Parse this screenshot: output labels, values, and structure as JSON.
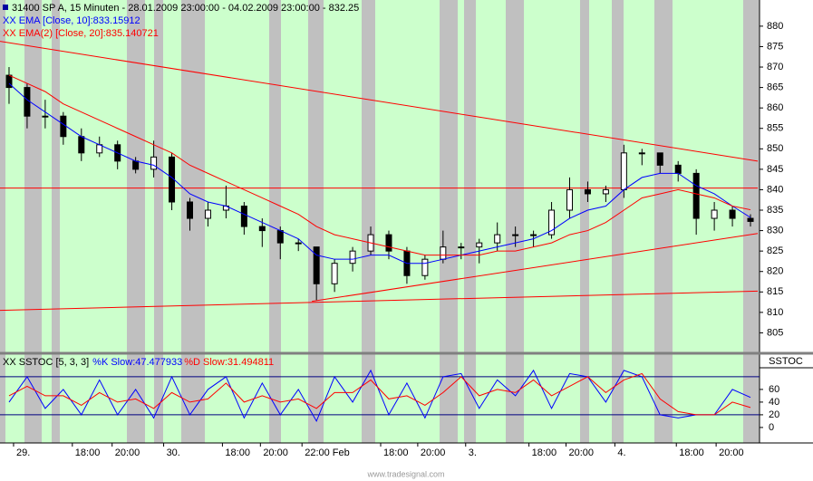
{
  "chart_data": [
    {
      "type": "candlestick",
      "title": "31400  SP A, 15 Minuten - 28.01.2009 23:00:00 - 04.02.2009 23:00:00 - 832.25",
      "candles": [
        [
          868,
          870,
          861,
          865
        ],
        [
          865,
          866,
          855,
          858
        ],
        [
          858,
          862,
          855,
          858
        ],
        [
          858,
          859,
          851,
          853
        ],
        [
          853,
          855,
          847,
          849
        ],
        [
          849,
          853,
          848,
          851
        ],
        [
          851,
          852,
          845,
          847
        ],
        [
          847,
          848,
          844,
          845
        ],
        [
          845,
          852,
          843,
          848
        ],
        [
          848,
          849,
          835,
          837
        ],
        [
          837,
          838,
          830,
          833
        ],
        [
          833,
          837,
          831,
          835
        ],
        [
          835,
          841,
          833,
          836
        ],
        [
          836,
          837,
          829,
          831
        ],
        [
          831,
          833,
          826,
          830
        ],
        [
          830,
          831,
          823,
          827
        ],
        [
          827,
          828,
          825,
          827
        ],
        [
          826,
          826,
          813,
          817
        ],
        [
          817,
          823,
          815,
          822
        ],
        [
          822,
          826,
          820,
          825
        ],
        [
          825,
          831,
          824,
          829
        ],
        [
          829,
          830,
          823,
          825
        ],
        [
          825,
          826,
          817,
          819
        ],
        [
          819,
          824,
          818,
          823
        ],
        [
          823,
          830,
          822,
          826
        ],
        [
          826,
          827,
          823,
          826
        ],
        [
          826,
          828,
          822,
          827
        ],
        [
          827,
          832,
          825,
          829
        ],
        [
          829,
          831,
          826,
          829
        ],
        [
          829,
          830,
          826,
          829
        ],
        [
          829,
          837,
          828,
          835
        ],
        [
          835,
          843,
          833,
          840
        ],
        [
          840,
          842,
          837,
          839
        ],
        [
          839,
          841,
          837,
          840
        ],
        [
          840,
          851,
          838,
          849
        ],
        [
          849,
          850,
          846,
          849
        ],
        [
          849,
          849,
          844,
          846
        ],
        [
          846,
          847,
          842,
          844
        ],
        [
          844,
          845,
          829,
          833
        ],
        [
          833,
          837,
          830,
          835
        ],
        [
          835,
          836,
          831,
          833
        ],
        [
          833,
          834,
          831,
          832.25
        ]
      ],
      "series": [
        {
          "name": "XX EMA [Close, 10]:833.15912",
          "color": "#0000ff",
          "values": [
            866,
            862,
            859,
            856,
            853,
            851,
            849,
            847,
            846,
            843,
            839,
            837,
            836,
            834,
            832,
            830,
            828,
            824,
            823,
            823,
            824,
            824,
            822,
            822,
            823,
            824,
            825,
            826,
            827,
            828,
            830,
            833,
            835,
            836,
            840,
            843,
            844,
            844,
            841,
            839,
            836,
            833.2
          ]
        },
        {
          "name": "XX EMA(2) [Close, 20]:835.140721",
          "color": "#ff0000",
          "values": [
            868,
            866,
            864,
            861,
            859,
            857,
            855,
            853,
            851,
            849,
            846,
            844,
            842,
            840,
            838,
            836,
            834,
            831,
            829,
            828,
            827,
            826,
            825,
            824,
            824,
            824,
            824,
            825,
            825,
            826,
            827,
            829,
            830,
            832,
            835,
            838,
            839,
            840,
            839,
            838,
            836,
            835.1
          ]
        }
      ],
      "trendlines": [
        [
          [
            -0.5,
            876.3
          ],
          [
            41.4,
            847
          ]
        ],
        [
          [
            -0.5,
            840.4
          ],
          [
            41.4,
            840.4
          ]
        ],
        [
          [
            16.75,
            812.7
          ],
          [
            41.4,
            829.3
          ]
        ],
        [
          [
            -0.5,
            810.5
          ],
          [
            41.4,
            815.2
          ]
        ]
      ],
      "xlim": [
        -0.5,
        41.5
      ],
      "ylim": [
        800,
        886.4
      ],
      "yticks": [
        805,
        810,
        815,
        820,
        825,
        830,
        835,
        840,
        845,
        850,
        855,
        860,
        865,
        870,
        875,
        880
      ],
      "xticks": [
        {
          "value": 0.25,
          "label": "29."
        },
        {
          "value": 3.5,
          "label": "18:00"
        },
        {
          "value": 5.7,
          "label": "20:00"
        },
        {
          "value": 8.55,
          "label": "30."
        },
        {
          "value": 11.8,
          "label": "18:00"
        },
        {
          "value": 13.9,
          "label": "20:00"
        },
        {
          "value": 16.2,
          "label": "22:00 Feb"
        },
        {
          "value": 20.55,
          "label": "18:00"
        },
        {
          "value": 22.6,
          "label": "20:00"
        },
        {
          "value": 25.25,
          "label": "3."
        },
        {
          "value": 28.75,
          "label": "18:00"
        },
        {
          "value": 30.8,
          "label": "20:00"
        },
        {
          "value": 33.5,
          "label": "4."
        },
        {
          "value": 36.9,
          "label": "18:00"
        },
        {
          "value": 39.1,
          "label": "20:00"
        }
      ],
      "footer": "www.tradesignal.com"
    },
    {
      "type": "line",
      "title": "XX SSTOC [5, 3, 3]",
      "panel_label": "SSTOC",
      "series": [
        {
          "name": "%K Slow:47.477933",
          "color": "#0000ff",
          "values": [
            40,
            80,
            30,
            60,
            20,
            75,
            20,
            60,
            15,
            80,
            20,
            60,
            80,
            15,
            70,
            20,
            60,
            10,
            80,
            40,
            90,
            20,
            70,
            15,
            80,
            85,
            30,
            75,
            50,
            90,
            30,
            85,
            80,
            40,
            90,
            80,
            20,
            15,
            20,
            20,
            60,
            47.5
          ]
        },
        {
          "name": "%D Slow:31.494811",
          "color": "#ff0000",
          "values": [
            50,
            65,
            50,
            50,
            35,
            55,
            40,
            45,
            30,
            55,
            40,
            45,
            70,
            40,
            50,
            40,
            45,
            30,
            55,
            55,
            75,
            45,
            50,
            35,
            55,
            80,
            50,
            60,
            55,
            75,
            50,
            65,
            80,
            55,
            75,
            85,
            45,
            25,
            20,
            20,
            40,
            31.5
          ]
        }
      ],
      "levels": [
        20,
        80
      ],
      "ylim": [
        -23,
        91.3
      ],
      "yticks": [
        0,
        20,
        40,
        60
      ]
    }
  ]
}
